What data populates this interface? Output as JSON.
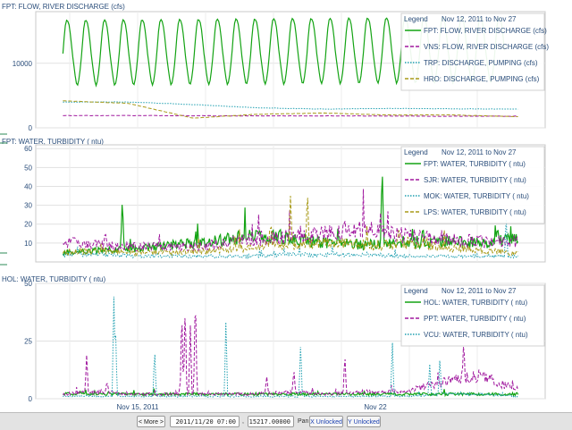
{
  "chart_data": [
    {
      "type": "line",
      "title": "FPT: FLOW, RIVER DISCHARGE (cfs)",
      "ylim": [
        0,
        18000
      ],
      "yticks": [
        0,
        10000
      ],
      "x_range": [
        "2011-11-12",
        "2011-11-27"
      ],
      "legend": {
        "title": "Legend",
        "period": "Nov 12, 2011 to Nov 27",
        "position": "top-right"
      },
      "series": [
        {
          "name": "FPT: FLOW, RIVER DISCHARGE (cfs)",
          "color": "#13a313",
          "style": "solid",
          "note_profile": "tidal oscillation",
          "mean": 11500,
          "amplitude": 5000,
          "cycles": 23.5,
          "trend": 500,
          "start_day": 0.8,
          "end_day": 13.8
        },
        {
          "name": "VNS: FLOW, RIVER DISCHARGE (cfs)",
          "color": "#a0189e",
          "style": "dashed",
          "profile": "flat",
          "values": [
            1900,
            1900,
            1850,
            1850,
            1800,
            1800
          ]
        },
        {
          "name": "TRP: DISCHARGE, PUMPING (cfs)",
          "color": "#1f9fb0",
          "style": "dotted",
          "profile": "steps",
          "values": [
            4000,
            4000,
            3600,
            3100,
            2900,
            3000,
            2950,
            2900
          ]
        },
        {
          "name": "HRO: DISCHARGE, PUMPING (cfs)",
          "color": "#a89a18",
          "style": "dashed",
          "profile": "steps",
          "values": [
            4200,
            3800,
            1500,
            2100,
            2300,
            2000,
            2000,
            1700
          ]
        }
      ]
    },
    {
      "type": "line",
      "title": "FPT: WATER, TURBIDITY ( ntu)",
      "ylim": [
        0,
        62
      ],
      "yticks": [
        10,
        20,
        30,
        40,
        50,
        60
      ],
      "x_range": [
        "2011-11-12",
        "2011-11-27"
      ],
      "legend": {
        "title": "Legend",
        "period": "Nov 12, 2011 to Nov 27",
        "position": "top-right"
      },
      "series": [
        {
          "name": "FPT: WATER, TURBIDITY ( ntu)",
          "color": "#13a313",
          "style": "solid",
          "base": [
            5,
            6,
            7,
            9,
            11,
            14,
            12,
            10,
            9,
            10,
            11,
            10,
            12
          ],
          "spikes": [
            [
              2.55,
              35
            ],
            [
              7.2,
              18
            ],
            [
              10.2,
              51
            ],
            [
              11.4,
              18
            ],
            [
              13.6,
              18
            ]
          ]
        },
        {
          "name": "SJR: WATER, TURBIDITY ( ntu)",
          "color": "#a0189e",
          "style": "dashed",
          "base": [
            11,
            9,
            8,
            8,
            9,
            12,
            13,
            15,
            17,
            14,
            12,
            11,
            11
          ],
          "spikes": [
            [
              9.1,
              22
            ],
            [
              10.9,
              16
            ]
          ]
        },
        {
          "name": "MOK: WATER, TURBIDITY ( ntu)",
          "color": "#1f9fb0",
          "style": "dotted",
          "base": [
            4,
            4,
            3,
            3,
            3,
            3,
            4,
            4,
            4,
            3,
            3,
            3,
            3
          ],
          "spikes": [
            [
              13.85,
              23
            ]
          ]
        },
        {
          "name": "LPS: WATER, TURBIDITY ( ntu)",
          "color": "#a89a18",
          "style": "dashed",
          "base": [
            5,
            6,
            5,
            5,
            6,
            8,
            9,
            10,
            9,
            9,
            8,
            6,
            5
          ],
          "spikes": [
            [
              6.9,
              20
            ],
            [
              7.5,
              35
            ],
            [
              8.0,
              39
            ],
            [
              10.7,
              19
            ]
          ]
        }
      ]
    },
    {
      "type": "line",
      "title": "HOL: WATER, TURBIDITY ( ntu)",
      "ylim": [
        0,
        50
      ],
      "yticks": [
        0,
        25,
        50
      ],
      "x_range": [
        "2011-11-12",
        "2011-11-27"
      ],
      "xticks": [
        {
          "label": "Nov 15, 2011",
          "day": 3.0
        },
        {
          "label": "Nov 22",
          "day": 10.0
        }
      ],
      "legend": {
        "title": "Legend",
        "period": "Nov 12, 2011 to Nov 27",
        "position": "top-right"
      },
      "series": [
        {
          "name": "HOL: WATER, TURBIDITY ( ntu)",
          "color": "#13a313",
          "style": "solid",
          "base": [
            2,
            2,
            2,
            2,
            2,
            2,
            2,
            2,
            2,
            2,
            2,
            2,
            2
          ],
          "spikes": []
        },
        {
          "name": "PPT: WATER, TURBIDITY ( ntu)",
          "color": "#a0189e",
          "style": "dashed",
          "base": [
            2,
            3,
            2,
            2,
            2,
            2,
            3,
            2,
            3,
            3,
            7,
            10,
            4
          ],
          "spikes": [
            [
              1.5,
              20
            ],
            [
              2.1,
              8
            ],
            [
              4.3,
              40
            ],
            [
              4.4,
              42
            ],
            [
              4.55,
              33
            ],
            [
              4.7,
              48
            ],
            [
              6.8,
              10
            ],
            [
              7.6,
              13
            ],
            [
              9.1,
              20
            ],
            [
              12.6,
              25
            ]
          ]
        },
        {
          "name": "VCU: WATER, TURBIDITY ( ntu)",
          "color": "#1f9fb0",
          "style": "dotted",
          "base": [
            1,
            1,
            1,
            1,
            1,
            1,
            1,
            1,
            1,
            1,
            2,
            2,
            1
          ],
          "spikes": [
            [
              2.3,
              45
            ],
            [
              2.35,
              30
            ],
            [
              3.5,
              22
            ],
            [
              5.6,
              35
            ],
            [
              7.8,
              25
            ],
            [
              10.5,
              25
            ],
            [
              11.6,
              15
            ],
            [
              11.9,
              18
            ]
          ]
        }
      ]
    }
  ],
  "toolbar": {
    "more_label": "< More >",
    "datetime_value": "2011/11/20 07:00",
    "comma": ",",
    "number_value": "15217.00000",
    "pan_label": "Pan",
    "x_label": "X Unlocked",
    "y_label": "Y Unlocked"
  }
}
